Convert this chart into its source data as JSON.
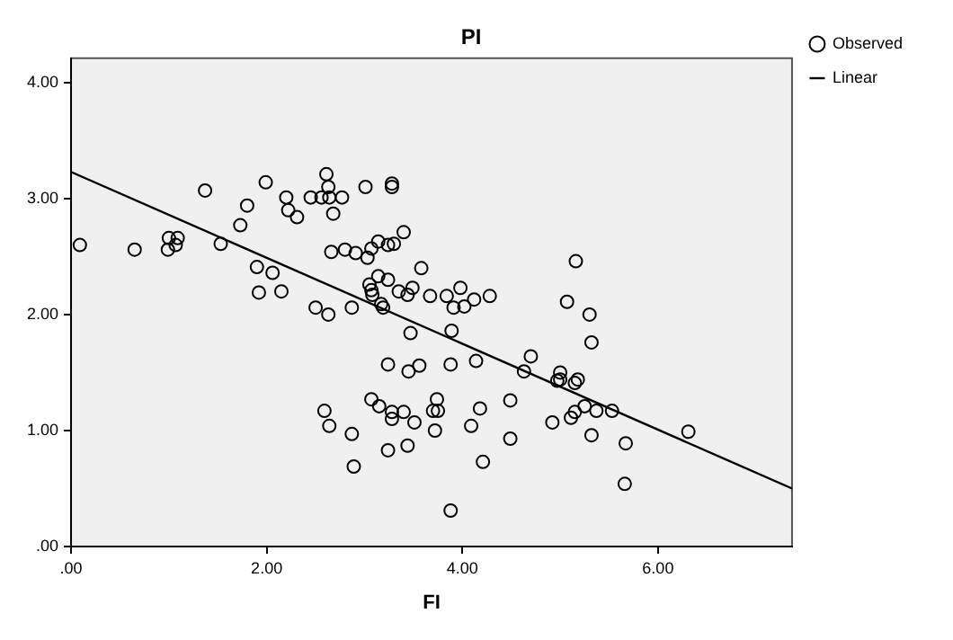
{
  "chart_data": {
    "type": "scatter",
    "title": "PI",
    "xlabel": "FI",
    "xlim": [
      0,
      7.37
    ],
    "ylim": [
      0,
      4.21
    ],
    "xticks": [
      {
        "value": 0,
        "label": ".00"
      },
      {
        "value": 2,
        "label": "2.00"
      },
      {
        "value": 4,
        "label": "4.00"
      },
      {
        "value": 6,
        "label": "6.00"
      }
    ],
    "yticks": [
      {
        "value": 0,
        "label": ".00"
      },
      {
        "value": 1,
        "label": "1.00"
      },
      {
        "value": 2,
        "label": "2.00"
      },
      {
        "value": 3,
        "label": "3.00"
      },
      {
        "value": 4,
        "label": "4.00"
      }
    ],
    "grid": false,
    "legend": "top right",
    "series": [
      {
        "name": "Observed",
        "marker": "circle",
        "color": "#000000",
        "x": [
          0.09,
          0.65,
          0.99,
          1.0,
          1.09,
          1.07,
          1.37,
          1.53,
          1.73,
          1.8,
          1.99,
          1.9,
          2.06,
          1.92,
          2.15,
          2.2,
          2.22,
          2.31,
          2.45,
          2.56,
          2.61,
          2.63,
          2.64,
          2.77,
          2.68,
          3.01,
          3.28,
          3.28,
          3.4,
          2.66,
          2.8,
          2.91,
          3.03,
          3.07,
          3.14,
          3.24,
          3.3,
          3.58,
          3.14,
          3.24,
          3.05,
          3.07,
          3.08,
          3.35,
          3.44,
          3.49,
          2.5,
          2.63,
          2.87,
          3.17,
          3.19,
          3.67,
          3.84,
          3.98,
          4.12,
          4.28,
          3.91,
          4.02,
          5.07,
          5.3,
          5.16,
          3.47,
          3.89,
          5.32,
          4.7,
          4.63,
          5.0,
          4.97,
          5.0,
          5.15,
          5.18,
          3.24,
          3.45,
          3.56,
          3.88,
          4.14,
          4.49,
          5.25,
          5.37,
          5.53,
          5.15,
          5.11,
          3.07,
          3.15,
          3.28,
          3.4,
          3.28,
          3.51,
          3.74,
          3.7,
          3.75,
          4.18,
          3.72,
          4.09,
          4.92,
          6.31,
          4.49,
          5.32,
          5.67,
          3.44,
          4.21,
          5.66,
          3.88,
          2.59,
          2.64,
          2.87,
          3.24,
          2.89
        ],
        "values": [
          2.6,
          2.56,
          2.56,
          2.66,
          2.66,
          2.6,
          3.07,
          2.61,
          2.77,
          2.94,
          3.14,
          2.41,
          2.36,
          2.19,
          2.2,
          3.01,
          2.9,
          2.84,
          3.01,
          3.01,
          3.21,
          3.1,
          3.01,
          3.01,
          2.87,
          3.1,
          3.1,
          3.13,
          2.71,
          2.54,
          2.56,
          2.53,
          2.49,
          2.57,
          2.63,
          2.6,
          2.61,
          2.4,
          2.33,
          2.3,
          2.26,
          2.21,
          2.17,
          2.2,
          2.17,
          2.23,
          2.06,
          2.0,
          2.06,
          2.09,
          2.06,
          2.16,
          2.16,
          2.23,
          2.13,
          2.16,
          2.06,
          2.07,
          2.11,
          2.0,
          2.46,
          1.84,
          1.86,
          1.76,
          1.64,
          1.51,
          1.5,
          1.43,
          1.44,
          1.41,
          1.44,
          1.57,
          1.51,
          1.56,
          1.57,
          1.6,
          1.26,
          1.21,
          1.17,
          1.17,
          1.16,
          1.11,
          1.27,
          1.21,
          1.16,
          1.16,
          1.1,
          1.07,
          1.27,
          1.17,
          1.17,
          1.19,
          1.0,
          1.04,
          1.07,
          0.99,
          0.93,
          0.96,
          0.89,
          0.87,
          0.73,
          0.54,
          0.31,
          1.17,
          1.04,
          0.97,
          0.83,
          0.69
        ]
      },
      {
        "name": "Linear",
        "type": "line",
        "color": "#000000",
        "x": [
          0,
          7.37
        ],
        "values": [
          3.23,
          0.5
        ]
      }
    ]
  }
}
